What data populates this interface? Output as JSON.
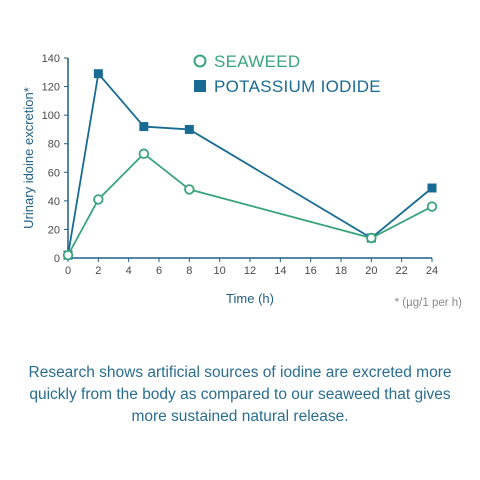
{
  "chart_data": {
    "type": "line",
    "xlabel": "Time (h)",
    "ylabel": "Urinary idoine excretion*",
    "footnote": "* (µg/1 per h)",
    "x_ticks": [
      0,
      2,
      4,
      6,
      8,
      10,
      12,
      14,
      16,
      18,
      20,
      22,
      24
    ],
    "y_ticks": [
      0,
      20,
      40,
      60,
      80,
      100,
      120,
      140
    ],
    "xlim": [
      0,
      24
    ],
    "ylim": [
      0,
      140
    ],
    "legend_position": "top-right",
    "series": [
      {
        "name": "SEAWEED",
        "marker": "open-circle",
        "color": "#3aa57c",
        "points": [
          [
            0,
            2
          ],
          [
            2,
            41
          ],
          [
            5,
            73
          ],
          [
            8,
            48
          ],
          [
            20,
            14
          ],
          [
            24,
            36
          ]
        ]
      },
      {
        "name": "POTASSIUM IODIDE",
        "marker": "filled-square",
        "color": "#1a6b93",
        "points": [
          [
            0,
            2
          ],
          [
            2,
            129
          ],
          [
            5,
            92
          ],
          [
            8,
            90
          ],
          [
            20,
            14
          ],
          [
            24,
            49
          ]
        ]
      }
    ]
  },
  "caption": "Research shows artificial sources of iodine are excreted more quickly from the body as compared to our seaweed that gives more sustained natural release."
}
